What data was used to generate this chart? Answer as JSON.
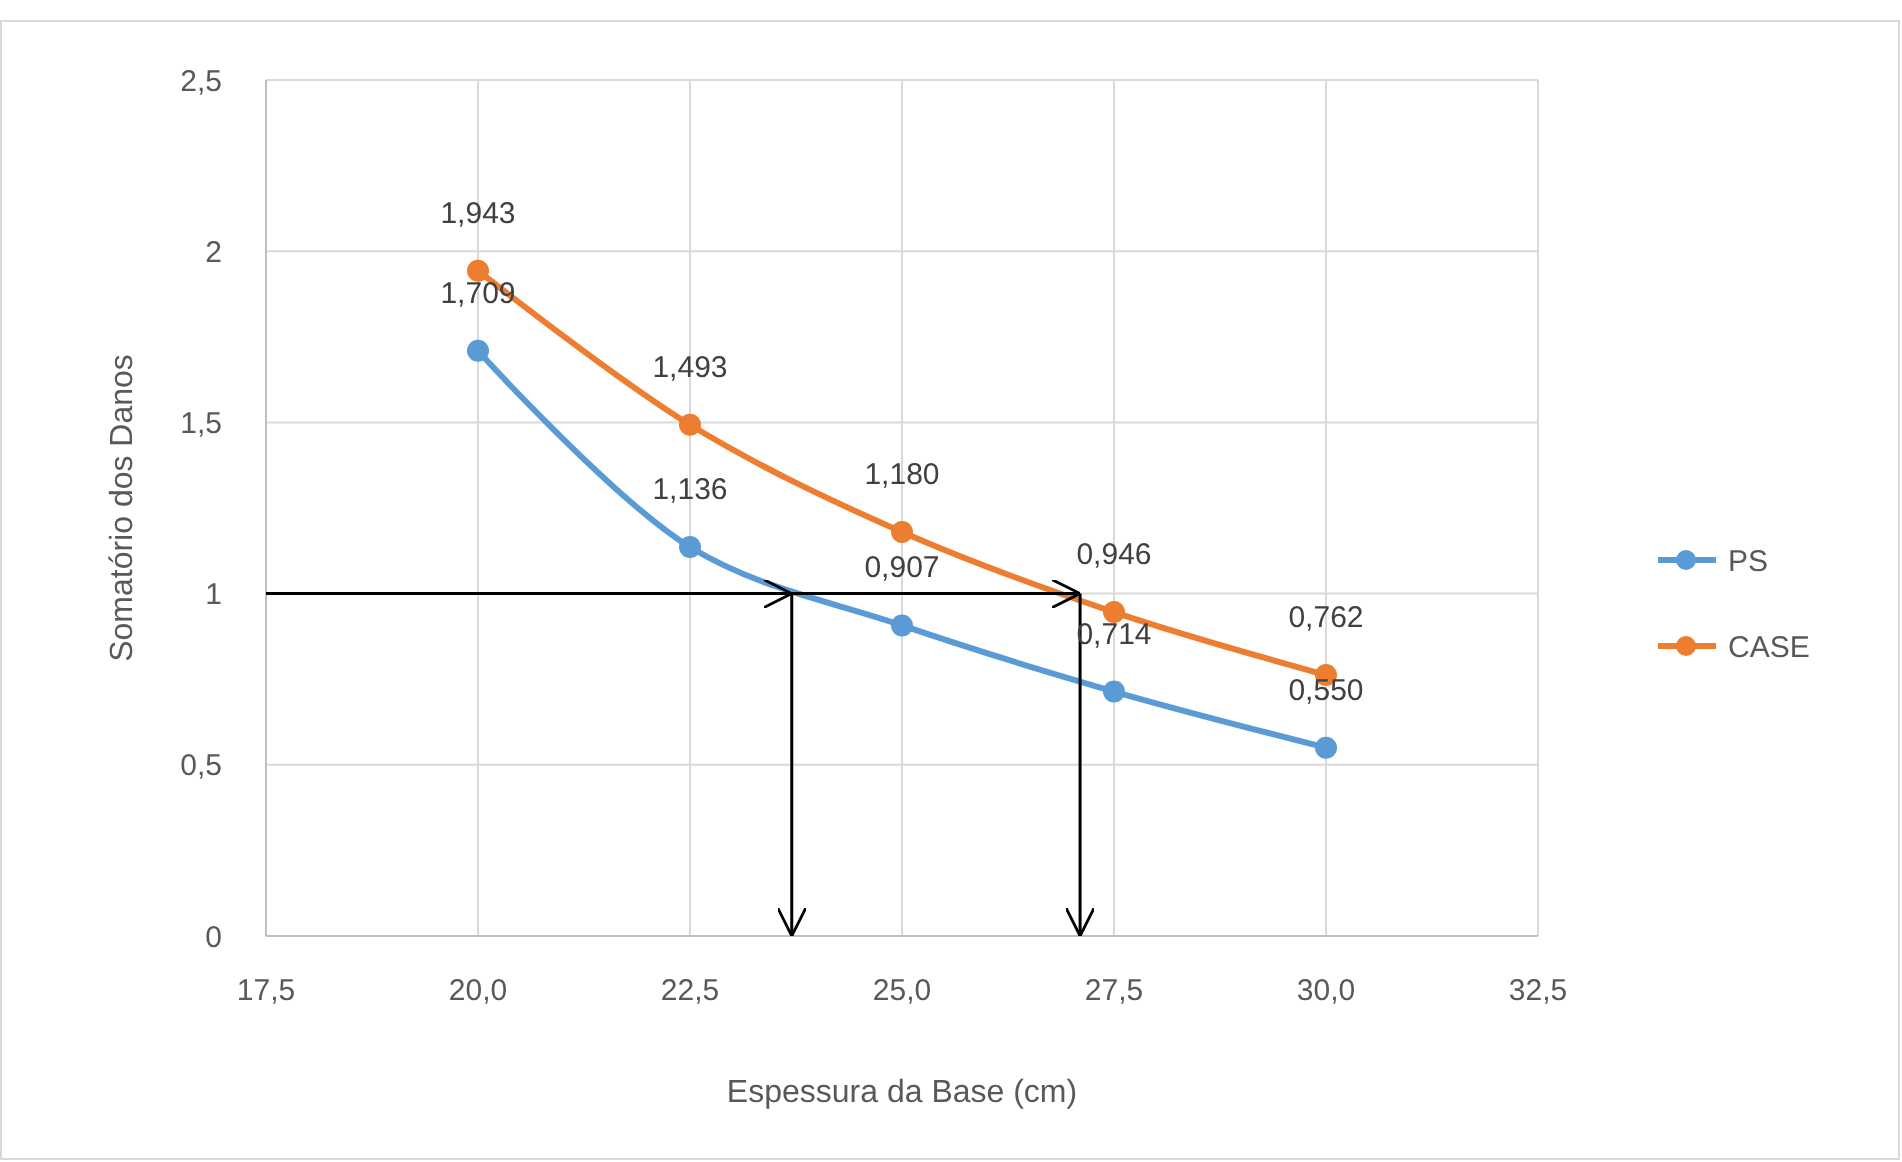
{
  "chart_data": {
    "type": "line",
    "xlabel": "Espessura da Base (cm)",
    "ylabel": "Somatório dos Danos",
    "x": [
      20,
      22.5,
      25,
      27.5,
      30
    ],
    "series": [
      {
        "name": "PS",
        "color": "#5b9bd5",
        "values": [
          1.709,
          1.136,
          0.907,
          0.714,
          0.55
        ],
        "value_labels": [
          "1,709",
          "1,136",
          "0,907",
          "0,714",
          "0,550"
        ]
      },
      {
        "name": "CASE",
        "color": "#ed7d31",
        "values": [
          1.943,
          1.493,
          1.18,
          0.946,
          0.762
        ],
        "value_labels": [
          "1,943",
          "1,493",
          "1,180",
          "0,946",
          "0,762"
        ]
      }
    ],
    "xlim": [
      17.5,
      32.5
    ],
    "xticks": [
      {
        "value": 17.5,
        "label": "17,5"
      },
      {
        "value": 20,
        "label": "20,0"
      },
      {
        "value": 22.5,
        "label": "22,5"
      },
      {
        "value": 25,
        "label": "25,0"
      },
      {
        "value": 27.5,
        "label": "27,5"
      },
      {
        "value": 30,
        "label": "30,0"
      },
      {
        "value": 32.5,
        "label": "32,5"
      }
    ],
    "ylim": [
      0,
      2.5
    ],
    "yticks": [
      0,
      {
        "value": 0.5,
        "label": "0,5"
      },
      1,
      {
        "value": 1.5,
        "label": "1,5"
      },
      2,
      {
        "value": 2.5,
        "label": "2,5"
      }
    ],
    "grid": true,
    "legend": "right",
    "marker": "circle",
    "line_style": "solid",
    "ref_lines": [
      {
        "axis": "y",
        "value": 1,
        "color": "#000000"
      },
      {
        "axis": "x",
        "value": 23.7,
        "color": "#000000"
      },
      {
        "axis": "x",
        "value": 27.1,
        "color": "#000000"
      }
    ]
  }
}
